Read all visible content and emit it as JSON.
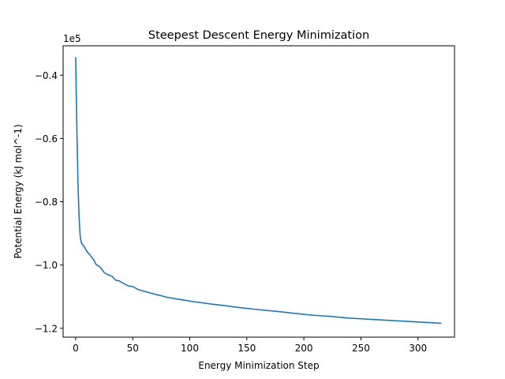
{
  "chart_data": {
    "type": "line",
    "title": "Steepest Descent Energy Minimization",
    "xlabel": "Energy Minimization Step",
    "ylabel": "Potential Energy (kJ mol^-1)",
    "offset_label": "1e5",
    "y_scale_factor": 100000,
    "xlim": [
      -11,
      332
    ],
    "ylim": [
      -1.228,
      -0.307
    ],
    "xticks": [
      0,
      50,
      100,
      150,
      200,
      250,
      300
    ],
    "xtick_labels": [
      "0",
      "50",
      "100",
      "150",
      "200",
      "250",
      "300"
    ],
    "yticks": [
      -0.4,
      -0.6,
      -0.8,
      -1.0,
      -1.2
    ],
    "ytick_labels": [
      "−0.4",
      "−0.6",
      "−0.8",
      "−1.0",
      "−1.2"
    ],
    "grid": false,
    "series": [
      {
        "color": "#1f77b4",
        "x": [
          0,
          1,
          2,
          3,
          4,
          5,
          6,
          8,
          10,
          12,
          14,
          16,
          18,
          20,
          22,
          25,
          28,
          32,
          35,
          38,
          42,
          46,
          50,
          55,
          60,
          65,
          70,
          75,
          80,
          90,
          100,
          110,
          120,
          130,
          140,
          150,
          160,
          175,
          190,
          200,
          210,
          225,
          240,
          250,
          260,
          275,
          290,
          300,
          310,
          320
        ],
        "y": [
          -0.345,
          -0.56,
          -0.74,
          -0.85,
          -0.91,
          -0.93,
          -0.935,
          -0.945,
          -0.958,
          -0.966,
          -0.975,
          -0.985,
          -0.999,
          -1.003,
          -1.009,
          -1.024,
          -1.03,
          -1.036,
          -1.048,
          -1.05,
          -1.058,
          -1.066,
          -1.068,
          -1.078,
          -1.083,
          -1.088,
          -1.093,
          -1.097,
          -1.102,
          -1.108,
          -1.114,
          -1.119,
          -1.124,
          -1.128,
          -1.133,
          -1.137,
          -1.141,
          -1.146,
          -1.152,
          -1.156,
          -1.159,
          -1.163,
          -1.168,
          -1.17,
          -1.172,
          -1.175,
          -1.178,
          -1.18,
          -1.182,
          -1.184
        ]
      }
    ]
  }
}
